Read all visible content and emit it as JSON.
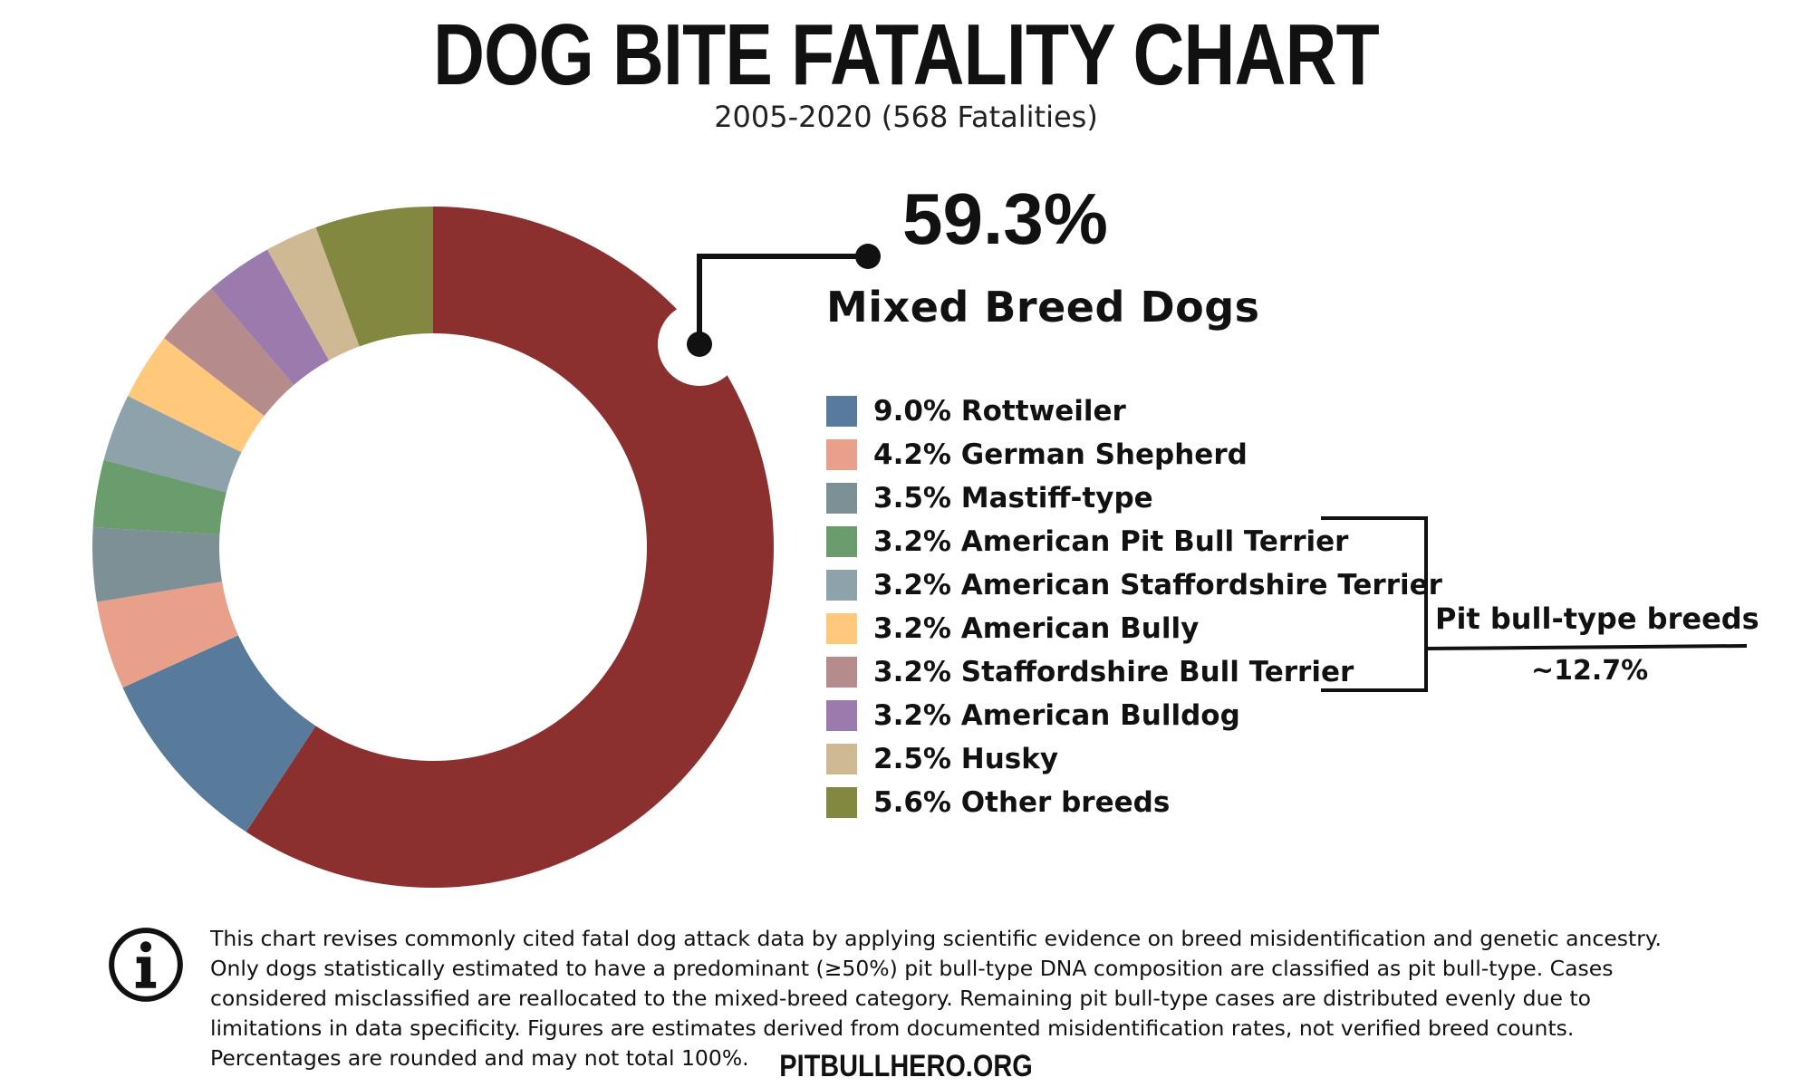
{
  "title": "DOG BITE FATALITY CHART",
  "subtitle": "2005-2020 (568 Fatalities)",
  "highlight": {
    "value": "59.3%",
    "label": "Mixed Breed Dogs"
  },
  "legend_items": [
    {
      "label": "9.0% Rottweiler",
      "color": "#587A9B"
    },
    {
      "label": "4.2% German Shepherd",
      "color": "#E8A08A"
    },
    {
      "label": "3.5% Mastiff-type",
      "color": "#7C9096"
    },
    {
      "label": "3.2% American Pit Bull Terrier",
      "color": "#6A9C6E"
    },
    {
      "label": "3.2% American Staffordshire Terrier",
      "color": "#8EA2AC"
    },
    {
      "label": "3.2% American Bully",
      "color": "#FFC87A"
    },
    {
      "label": "3.2% Staffordshire Bull Terrier",
      "color": "#B68B8B"
    },
    {
      "label": "3.2% American Bulldog",
      "color": "#9B7BAE"
    },
    {
      "label": "2.5% Husky",
      "color": "#CFB894"
    },
    {
      "label": "5.6% Other breeds",
      "color": "#838840"
    }
  ],
  "group": {
    "label": "Pit bull-type breeds",
    "value": "~12.7%"
  },
  "note": "This chart revises commonly cited fatal dog attack data by applying scientific evidence on breed misidentification and genetic ancestry. Only dogs statistically estimated to have a predominant (≥50%) pit bull-type DNA composition are classified as pit bull-type. Cases considered misclassified are reallocated to the mixed-breed category. Remaining pit bull-type cases are distributed evenly due to limitations in data specificity. Figures are estimates derived from documented misidentification rates, not verified breed counts. Percentages are rounded and may not total 100%.",
  "footer": "PITBULLHERO.ORG",
  "icons": {
    "info": "info-icon"
  },
  "chart_data": {
    "type": "pie",
    "title": "DOG BITE FATALITY CHART",
    "subtitle": "2005-2020 (568 Fatalities)",
    "categories": [
      "Mixed Breed Dogs",
      "Rottweiler",
      "German Shepherd",
      "Mastiff-type",
      "American Pit Bull Terrier",
      "American Staffordshire Terrier",
      "American Bully",
      "Staffordshire Bull Terrier",
      "American Bulldog",
      "Husky",
      "Other breeds"
    ],
    "values": [
      59.3,
      9.0,
      4.2,
      3.5,
      3.2,
      3.2,
      3.2,
      3.2,
      3.2,
      2.5,
      5.6
    ],
    "colors": [
      "#8B2F2F",
      "#587A9B",
      "#E8A08A",
      "#7C9096",
      "#6A9C6E",
      "#8EA2AC",
      "#FFC87A",
      "#B68B8B",
      "#9B7BAE",
      "#CFB894",
      "#838840"
    ],
    "donut": true,
    "legend_position": "right"
  }
}
